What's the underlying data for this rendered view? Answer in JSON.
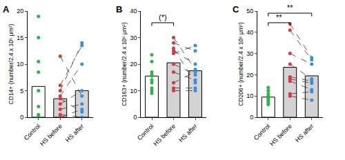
{
  "chart_data": [
    {
      "type": "bar",
      "title": "A",
      "y_label": "CD14+ (number/2.4 x 10⁵ μm²)",
      "categories": [
        "Control",
        "HS before",
        "HS after"
      ],
      "values": [
        5.8,
        3.5,
        5.0
      ],
      "colors": [
        "#ffffff",
        "#d3d3d3",
        "#d3d3d3"
      ],
      "ylim": [
        0,
        20
      ],
      "yticks": [
        0,
        5,
        10,
        15,
        20
      ],
      "grid": false,
      "points": [
        {
          "category": "Control",
          "color": "#2eb34a",
          "values": [
            19,
            15,
            10.5,
            8.5,
            5,
            2,
            0.5,
            0,
            0,
            0,
            0
          ]
        },
        {
          "category": "HS before",
          "color": "#d9363e",
          "values": [
            11.5,
            6,
            5,
            4,
            3.5,
            2.5,
            1.5,
            0.5,
            0
          ]
        },
        {
          "category": "HS after",
          "color": "#3b8fd9",
          "values": [
            4,
            13.5,
            14,
            10,
            1,
            5,
            2.5,
            0,
            1.5
          ]
        }
      ],
      "paired_lines": {
        "from": "HS before",
        "to": "HS after",
        "line_style": "dashed"
      }
    },
    {
      "type": "bar",
      "title": "B",
      "y_label": "CD163+ (number/2.4 x 10⁵ μm²)",
      "categories": [
        "Control",
        "HS before",
        "HS after"
      ],
      "values": [
        15.5,
        20.5,
        17.5
      ],
      "colors": [
        "#ffffff",
        "#d3d3d3",
        "#d3d3d3"
      ],
      "ylim": [
        0,
        40
      ],
      "yticks": [
        0,
        10,
        20,
        30,
        40
      ],
      "grid": false,
      "points": [
        {
          "category": "Control",
          "color": "#2eb34a",
          "values": [
            23.5,
            21,
            17,
            16,
            15.5,
            14,
            13,
            11,
            10,
            9
          ]
        },
        {
          "category": "HS before",
          "color": "#d9363e",
          "values": [
            30,
            28,
            26,
            25,
            24,
            20,
            17,
            13,
            11,
            10
          ]
        },
        {
          "category": "HS after",
          "color": "#3b8fd9",
          "values": [
            18,
            25,
            13,
            20,
            27,
            16,
            14,
            17,
            11,
            10
          ]
        }
      ],
      "paired_lines": {
        "from": "HS before",
        "to": "HS after",
        "line_style": "dashed"
      },
      "significance": [
        {
          "from": "Control",
          "to": "HS before",
          "text": "(*)"
        }
      ]
    },
    {
      "type": "bar",
      "title": "C",
      "y_label": "CD206+ (number/2.4 x 10⁵ μm²)",
      "categories": [
        "Control",
        "HS before",
        "HS after"
      ],
      "values": [
        9.5,
        23.5,
        19.5
      ],
      "colors": [
        "#ffffff",
        "#d3d3d3",
        "#d3d3d3"
      ],
      "ylim": [
        0,
        50
      ],
      "yticks": [
        0,
        10,
        20,
        30,
        40,
        50
      ],
      "grid": false,
      "points": [
        {
          "category": "Control",
          "color": "#2eb34a",
          "values": [
            14,
            12.5,
            11,
            10,
            9.5,
            9,
            8,
            7,
            6
          ]
        },
        {
          "category": "HS before",
          "color": "#d9363e",
          "values": [
            44,
            41,
            30,
            25,
            19,
            18,
            17,
            11,
            10
          ]
        },
        {
          "category": "HS after",
          "color": "#3b8fd9",
          "values": [
            28,
            27,
            25,
            18,
            17,
            16,
            13,
            12,
            8
          ]
        }
      ],
      "paired_lines": {
        "from": "HS before",
        "to": "HS after",
        "line_style": "dashed"
      },
      "significance": [
        {
          "from": "Control",
          "to": "HS before",
          "text": "**"
        },
        {
          "from": "Control",
          "to": "HS after",
          "text": "**"
        }
      ]
    }
  ]
}
